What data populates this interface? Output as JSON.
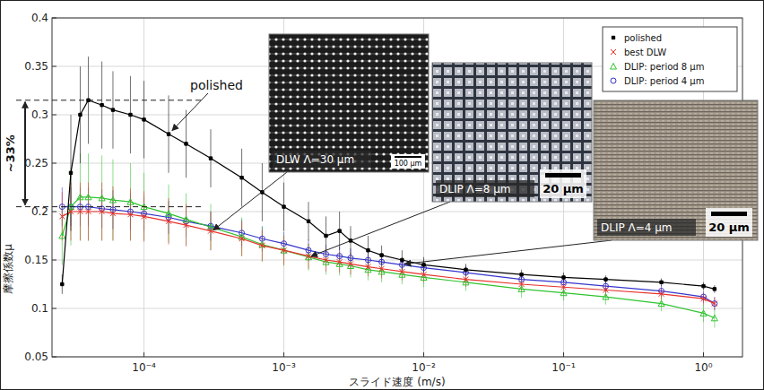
{
  "chart_data": {
    "type": "line",
    "xlabel": "スライド速度 (m/s)",
    "ylabel": "摩擦係数μ",
    "log": "x",
    "grid": true,
    "legend": "upper right",
    "xlim": [
      2.2e-05,
      1.9
    ],
    "ylim": [
      0.05,
      0.4
    ],
    "xticks": [
      {
        "value": 0.0001,
        "label": "10⁻⁴"
      },
      {
        "value": 0.001,
        "label": "10⁻³"
      },
      {
        "value": 0.01,
        "label": "10⁻²"
      },
      {
        "value": 0.1,
        "label": "10⁻¹"
      },
      {
        "value": 1,
        "label": "10⁰"
      }
    ],
    "yticks": [
      0.05,
      0.1,
      0.15,
      0.2,
      0.25,
      0.3,
      0.35,
      0.4
    ],
    "x": [
      2.6e-05,
      3e-05,
      3.5e-05,
      4e-05,
      5e-05,
      6e-05,
      8e-05,
      0.0001,
      0.00015,
      0.0002,
      0.0003,
      0.0005,
      0.0007,
      0.001,
      0.0015,
      0.002,
      0.0025,
      0.003,
      0.004,
      0.005,
      0.007,
      0.01,
      0.02,
      0.05,
      0.1,
      0.2,
      0.5,
      1.0,
      1.2
    ],
    "series": [
      {
        "name": "polished",
        "color": "#000000",
        "marker": "square",
        "values": [
          0.125,
          0.24,
          0.3,
          0.315,
          0.31,
          0.305,
          0.3,
          0.295,
          0.28,
          0.27,
          0.255,
          0.235,
          0.22,
          0.205,
          0.19,
          0.175,
          0.18,
          0.17,
          0.16,
          0.155,
          0.15,
          0.145,
          0.14,
          0.135,
          0.132,
          0.13,
          0.127,
          0.123,
          0.12
        ],
        "errors": [
          0.01,
          0.06,
          0.05,
          0.045,
          0.045,
          0.04,
          0.04,
          0.04,
          0.04,
          0.035,
          0.03,
          0.03,
          0.03,
          0.025,
          0.02,
          0.02,
          0.02,
          0.015,
          0.015,
          0.01,
          0.01,
          0.008,
          0.006,
          0.005,
          0.005,
          0.004,
          0.004,
          0.004,
          0.004
        ]
      },
      {
        "name": "best DLW",
        "color": "#e8302a",
        "marker": "x",
        "values": [
          0.195,
          0.2,
          0.2,
          0.2,
          0.2,
          0.198,
          0.197,
          0.195,
          0.19,
          0.186,
          0.18,
          0.172,
          0.165,
          0.16,
          0.154,
          0.15,
          0.148,
          0.146,
          0.143,
          0.141,
          0.138,
          0.135,
          0.13,
          0.125,
          0.122,
          0.119,
          0.115,
          0.11,
          0.105
        ],
        "errors": [
          0.025,
          0.03,
          0.03,
          0.03,
          0.03,
          0.028,
          0.027,
          0.026,
          0.024,
          0.022,
          0.02,
          0.018,
          0.016,
          0.015,
          0.013,
          0.012,
          0.011,
          0.011,
          0.01,
          0.01,
          0.009,
          0.008,
          0.008,
          0.007,
          0.007,
          0.006,
          0.006,
          0.006,
          0.006
        ]
      },
      {
        "name": "DLIP: period 8 µm",
        "color": "#2fc42f",
        "marker": "triangle",
        "values": [
          0.175,
          0.205,
          0.215,
          0.215,
          0.214,
          0.212,
          0.21,
          0.205,
          0.198,
          0.192,
          0.184,
          0.174,
          0.166,
          0.16,
          0.153,
          0.148,
          0.146,
          0.144,
          0.14,
          0.138,
          0.135,
          0.132,
          0.127,
          0.12,
          0.116,
          0.112,
          0.105,
          0.095,
          0.09
        ],
        "errors": [
          0.03,
          0.04,
          0.045,
          0.045,
          0.044,
          0.042,
          0.04,
          0.035,
          0.03,
          0.027,
          0.024,
          0.02,
          0.018,
          0.016,
          0.014,
          0.013,
          0.012,
          0.012,
          0.011,
          0.011,
          0.01,
          0.01,
          0.009,
          0.009,
          0.008,
          0.008,
          0.008,
          0.009,
          0.01
        ]
      },
      {
        "name": "DLIP: period 4 µm",
        "color": "#3535cc",
        "marker": "circle",
        "values": [
          0.205,
          0.205,
          0.205,
          0.205,
          0.203,
          0.202,
          0.2,
          0.198,
          0.194,
          0.19,
          0.185,
          0.178,
          0.172,
          0.167,
          0.16,
          0.156,
          0.154,
          0.152,
          0.15,
          0.148,
          0.145,
          0.142,
          0.137,
          0.13,
          0.127,
          0.123,
          0.118,
          0.112,
          0.105
        ],
        "errors": [
          0.02,
          0.02,
          0.02,
          0.02,
          0.02,
          0.02,
          0.019,
          0.018,
          0.017,
          0.016,
          0.015,
          0.014,
          0.013,
          0.012,
          0.011,
          0.01,
          0.01,
          0.01,
          0.009,
          0.009,
          0.008,
          0.008,
          0.007,
          0.007,
          0.007,
          0.006,
          0.006,
          0.006,
          0.007
        ]
      }
    ],
    "annotations": [
      {
        "text": "polished"
      },
      {
        "text": "~33%",
        "from": 0.315,
        "to": 0.205
      }
    ],
    "insets": [
      {
        "label": "DLW Λ=30 µm",
        "scale_bar": "100 µm"
      },
      {
        "label": "DLIP Λ=8 µm",
        "scale_bar": "20 µm"
      },
      {
        "label": "DLIP Λ=4 µm",
        "scale_bar": "20 µm"
      }
    ]
  }
}
